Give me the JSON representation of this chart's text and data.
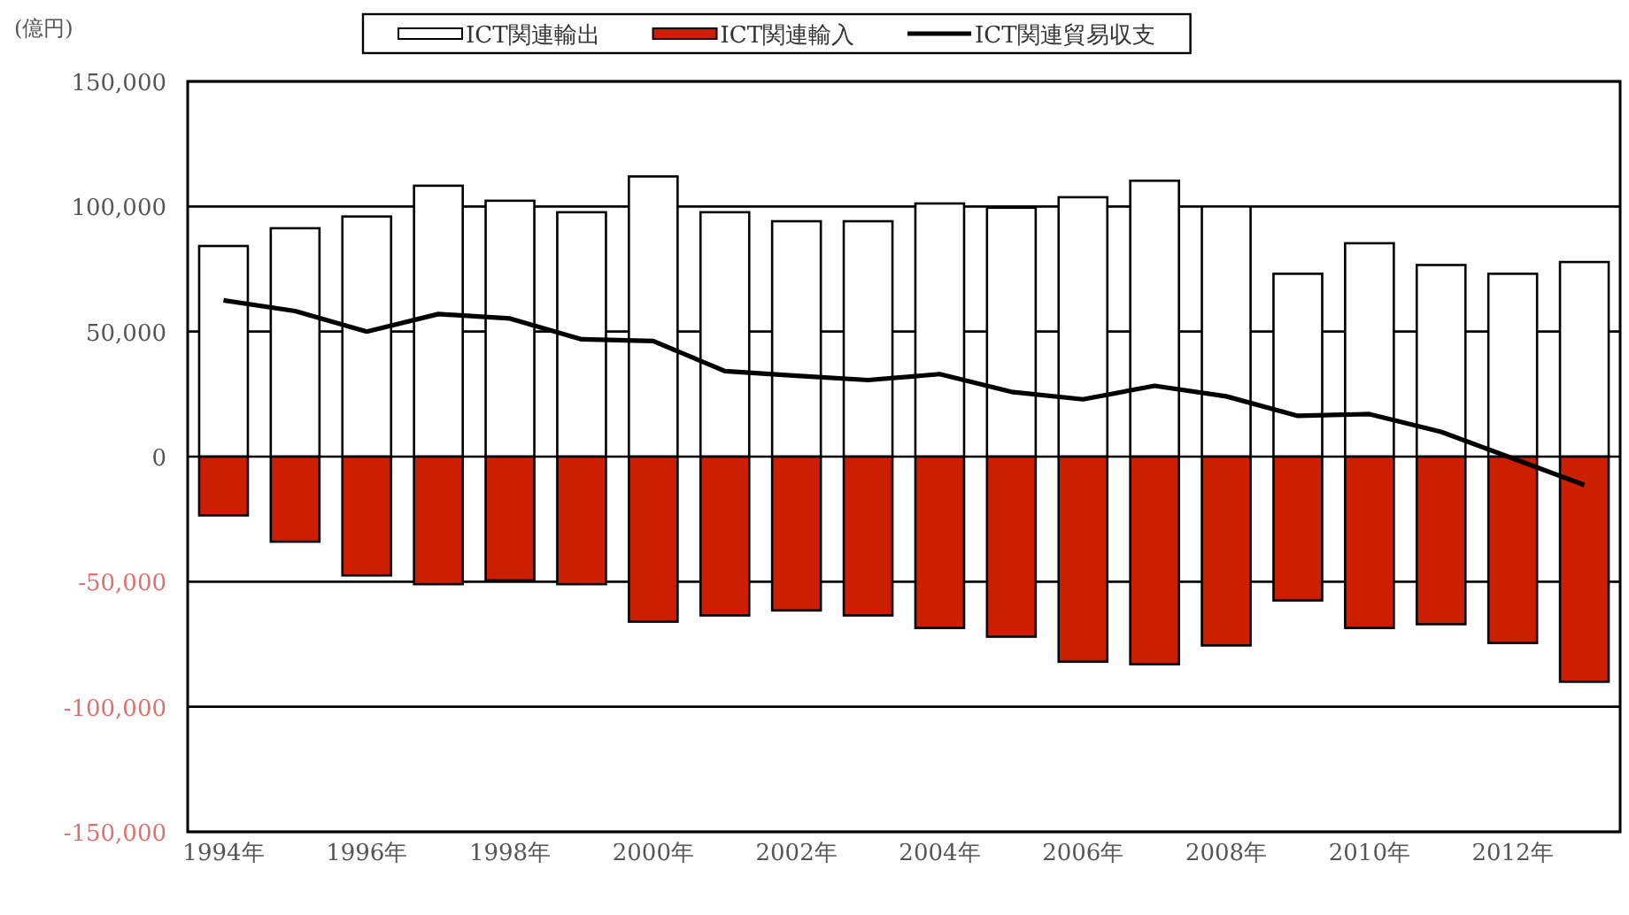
{
  "chart_data": {
    "type": "bar",
    "stacked": true,
    "ylabel": "(億円)",
    "categories": [
      "1994年",
      null,
      "1996年",
      null,
      "1998年",
      null,
      "2000年",
      null,
      "2002年",
      null,
      "2004年",
      null,
      "2006年",
      null,
      "2008年",
      null,
      "2010年",
      null,
      "2012年",
      null
    ],
    "series": [
      {
        "name": "ICT関連輸出",
        "color": "#ffffff",
        "values": [
          84200,
          91300,
          96000,
          108300,
          102300,
          97700,
          112000,
          97700,
          94100,
          94100,
          101200,
          99500,
          103700,
          110300,
          100000,
          73100,
          85300,
          76600,
          73100,
          77800
        ]
      },
      {
        "name": "ICT関連輸入",
        "color": "#cc1f00",
        "values": [
          -23500,
          -34000,
          -47500,
          -51000,
          -49500,
          -51000,
          -66000,
          -63500,
          -61500,
          -63500,
          -68500,
          -72000,
          -82000,
          -83000,
          -75500,
          -57500,
          -68500,
          -67000,
          -74500,
          -90000
        ]
      },
      {
        "name": "ICT関連貿易収支",
        "type": "line",
        "color": "#000000",
        "values": [
          62500,
          58200,
          50000,
          57000,
          55200,
          46900,
          46200,
          34200,
          32300,
          30600,
          33000,
          25900,
          22900,
          28300,
          24100,
          16300,
          17000,
          9900,
          -700,
          -11300
        ]
      }
    ],
    "ylim": [
      -150000,
      150000
    ],
    "yticks": [
      {
        "value": -150000,
        "label": "-150,000"
      },
      {
        "value": -100000,
        "label": "-100,000"
      },
      {
        "value": -50000,
        "label": "-50,000"
      },
      0,
      {
        "value": 50000,
        "label": "50,000"
      },
      {
        "value": 100000,
        "label": "100,000"
      },
      {
        "value": 150000,
        "label": "150,000"
      }
    ],
    "grid": "y",
    "legend": "top",
    "marker": "none",
    "line_style": "solid"
  }
}
